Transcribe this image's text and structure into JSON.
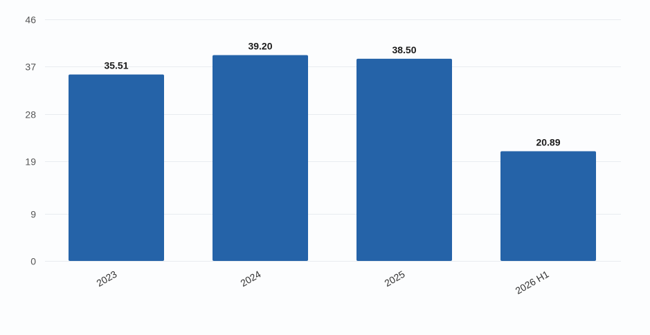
{
  "chart_data": {
    "type": "bar",
    "categories": [
      "2023",
      "2024",
      "2025",
      "2026 H1"
    ],
    "values": [
      35.51,
      39.2,
      38.5,
      20.89
    ],
    "data_labels": [
      "35.51",
      "39.20",
      "38.50",
      "20.89"
    ],
    "yticks": [
      0,
      9,
      19,
      28,
      37,
      46
    ],
    "ylim": [
      0,
      46
    ],
    "title": "",
    "xlabel": "",
    "ylabel": "",
    "grid": true,
    "legend": "none",
    "bar_color": "#2563a8"
  }
}
